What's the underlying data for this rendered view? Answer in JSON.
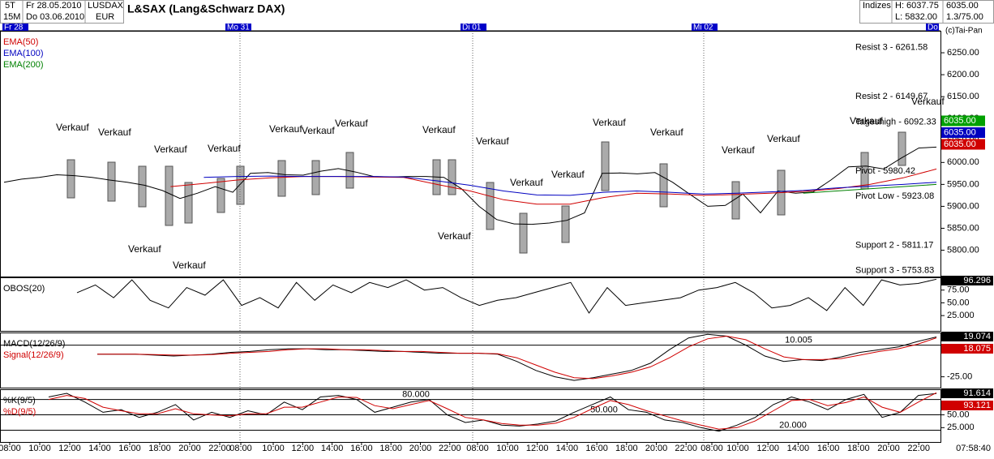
{
  "header": {
    "period": "5T",
    "interval": "15M",
    "date_from": "Fr 28.05.2010",
    "date_to": "Do 03.06.2010",
    "symbol": "LUSDAX",
    "currency": "EUR",
    "title": "L&SAX (Lang&Schwarz DAX)",
    "group": "Indizes",
    "high": "H: 6037.75",
    "low": "L: 5832.00",
    "last": "6035.00",
    "ratio": "1.3/75.00",
    "copyright": "(c)Tai-Pan",
    "time": "07:58:40",
    "days": [
      "Fr 28",
      "Mo 31",
      "Di 01",
      "Mi 02",
      "Do"
    ],
    "time_labels": [
      "08:00",
      "10:00",
      "12:00",
      "14:00",
      "16:00",
      "18:00",
      "20:00",
      "22:00",
      "08:00",
      "10:00",
      "12:00",
      "14:00",
      "16:00",
      "18:00",
      "20:00",
      "22:00",
      "08:00",
      "10:00",
      "12:00",
      "14:00",
      "16:00",
      "18:00",
      "20:00",
      "22:00",
      "08:00",
      "10:00",
      "12:00",
      "14:00",
      "16:00",
      "18:00",
      "20:00",
      "22:00"
    ]
  },
  "chart_data": [
    {
      "type": "line",
      "ylim": [
        5740,
        6300
      ],
      "yticks": [
        {
          "value": 5800,
          "label": "5800.00"
        },
        {
          "value": 5850,
          "label": "5850.00"
        },
        {
          "value": 5900,
          "label": "5900.00"
        },
        {
          "value": 5950,
          "label": "5950.00"
        },
        {
          "value": 6000,
          "label": "6000.00"
        },
        {
          "value": 6050,
          "label": "6050.00"
        },
        {
          "value": 6100,
          "label": "6100.00"
        },
        {
          "value": 6150,
          "label": "6150.00"
        },
        {
          "value": 6200,
          "label": "6200.00"
        },
        {
          "value": 6250,
          "label": "6250.00"
        }
      ],
      "series": [
        {
          "color": "#000000",
          "values": [
            5955,
            5962,
            5966,
            5972,
            5970,
            5966,
            5960,
            5955,
            5948,
            5936,
            5918,
            5930,
            5945,
            5932,
            5975,
            5977,
            5972,
            5971,
            5980,
            5986,
            5978,
            5968,
            5967,
            5968,
            5968,
            5966,
            5940,
            5900,
            5870,
            5860,
            5859,
            5862,
            5868,
            5885,
            5975,
            5976,
            5974,
            5977,
            5955,
            5927,
            5900,
            5902,
            5928,
            5885,
            5935,
            5930,
            5933,
            5960,
            5990,
            5992,
            5985,
            6010,
            6033,
            6035
          ]
        },
        {
          "name": "EMA(50)",
          "color": "#d00000",
          "values": [
            null,
            null,
            null,
            null,
            null,
            5945,
            5952,
            5960,
            5965,
            5968,
            5968,
            5967,
            5966,
            5950,
            5935,
            5915,
            5905,
            5905,
            5920,
            5930,
            5928,
            5925,
            5927,
            5930,
            5934,
            5940,
            5950,
            5965,
            5985
          ]
        },
        {
          "name": "EMA(100)",
          "color": "#0000c0",
          "values": [
            null,
            null,
            null,
            null,
            null,
            null,
            5966,
            5968,
            5969,
            5968,
            5968,
            5968,
            5967,
            5958,
            5948,
            5935,
            5926,
            5925,
            5932,
            5935,
            5932,
            5928,
            5930,
            5933,
            5936,
            5942,
            5946,
            5950,
            5955
          ]
        },
        {
          "name": "EMA(200)",
          "color": "#008000",
          "values": [
            null,
            null,
            null,
            null,
            null,
            null,
            null,
            null,
            null,
            null,
            null,
            null,
            null,
            null,
            null,
            null,
            null,
            null,
            null,
            null,
            null,
            null,
            null,
            null,
            5930,
            5935,
            5940,
            5945,
            5950
          ]
        }
      ],
      "levels": [
        {
          "label": "Resist 3 - 6261.58",
          "value": 6261.58
        },
        {
          "label": "Resist 2 - 6149.67",
          "value": 6149.67
        },
        {
          "label": "Tageshigh - 6092.33",
          "value": 6092.33
        },
        {
          "label": "Pivot - 5980.42",
          "value": 5980.42
        },
        {
          "label": "Pivot Low - 5923.08",
          "value": 5923.08
        },
        {
          "label": "Support 2 - 5811.17",
          "value": 5811.17
        },
        {
          "label": "Support 3 - 5753.83",
          "value": 5753.83
        }
      ],
      "price_tags": [
        {
          "value": 6035,
          "label": "6035.00",
          "color": "#00a000"
        },
        {
          "value": 6035,
          "label": "6035.00",
          "color": "#0000c0"
        },
        {
          "value": 6035,
          "label": "6035.00",
          "color": "#d00000"
        }
      ],
      "annotations": [
        "Verkauf",
        "Verkauf",
        "Verkauf",
        "Verkauf",
        "Verkauf",
        "Verkauf",
        "Verkauf",
        "Verkauf",
        "Verkauf",
        "Verkauf",
        "Verkauf",
        "Verkauf",
        "Verkauf",
        "Verkauf",
        "Verkauf",
        "Verkauf",
        "Verkauf",
        "Verkauf",
        "Verkauf",
        "Verkauf"
      ]
    },
    {
      "type": "line",
      "ylim": [
        -5,
        100
      ],
      "yticks": [
        {
          "value": 75,
          "label": "75.00"
        },
        {
          "value": 50,
          "label": "50.00"
        },
        {
          "value": 25,
          "label": "25.000"
        }
      ],
      "series": [
        {
          "name": "OBOS(20)",
          "color": "#000000",
          "values": [
            70,
            85,
            60,
            95,
            55,
            40,
            80,
            65,
            95,
            45,
            60,
            40,
            90,
            55,
            85,
            70,
            90,
            80,
            95,
            75,
            80,
            60,
            45,
            55,
            60,
            70,
            80,
            90,
            30,
            80,
            45,
            50,
            55,
            60,
            75,
            80,
            90,
            70,
            40,
            45,
            60,
            35,
            80,
            45,
            95,
            85,
            88,
            96.296
          ]
        }
      ]
    },
    {
      "type": "line",
      "ylim": [
        -37,
        24
      ],
      "yticks": [
        {
          "value": -25,
          "label": "-25.00"
        }
      ],
      "levels": [
        {
          "value": 10.005,
          "label": "10.005"
        }
      ],
      "series": [
        {
          "name": "MACD(12/26/9)",
          "color": "#000000",
          "values": [
            0,
            0,
            0,
            -1,
            -2,
            -1,
            0,
            2,
            3,
            5,
            6,
            6,
            5,
            5,
            4,
            3,
            3,
            2,
            1,
            1,
            1,
            0,
            -8,
            -18,
            -25,
            -29,
            -26,
            -22,
            -18,
            -10,
            5,
            18,
            22,
            20,
            10,
            -2,
            -8,
            -6,
            -7,
            -3,
            2,
            5,
            8,
            14,
            19.074
          ]
        },
        {
          "name": "Signal(12/26/9)",
          "color": "#d00000",
          "values": [
            0,
            0,
            0,
            -0.5,
            -1,
            -1,
            -0.5,
            1,
            2,
            3,
            5,
            6,
            6,
            5,
            5,
            4,
            3,
            3,
            2,
            1,
            1,
            0.5,
            -4,
            -12,
            -20,
            -26,
            -27,
            -24,
            -20,
            -14,
            -4,
            8,
            17,
            20,
            16,
            6,
            -3,
            -6,
            -6,
            -5,
            -1,
            3,
            6,
            11,
            18.075
          ]
        }
      ]
    },
    {
      "type": "line",
      "ylim": [
        -3,
        100
      ],
      "yticks": [
        {
          "value": 50,
          "label": "50.00"
        },
        {
          "value": 25,
          "label": "25.000"
        }
      ],
      "levels": [
        {
          "value": 80,
          "label": "80.000"
        },
        {
          "value": 50,
          "label": "50.000"
        },
        {
          "value": 20,
          "label": "20.000"
        }
      ],
      "series": [
        {
          "name": "%K(9/5)",
          "color": "#000000",
          "values": [
            85,
            92,
            75,
            55,
            60,
            45,
            55,
            70,
            40,
            55,
            45,
            58,
            50,
            75,
            60,
            85,
            88,
            80,
            55,
            65,
            75,
            80,
            50,
            35,
            40,
            30,
            28,
            32,
            38,
            55,
            70,
            85,
            60,
            55,
            40,
            35,
            25,
            18,
            30,
            45,
            70,
            85,
            75,
            60,
            80,
            90,
            45,
            55,
            88,
            91.614
          ]
        },
        {
          "name": "%D(9/5)",
          "color": "#d00000",
          "values": [
            80,
            88,
            82,
            65,
            58,
            52,
            52,
            62,
            52,
            50,
            48,
            52,
            52,
            65,
            65,
            75,
            85,
            84,
            68,
            62,
            70,
            78,
            62,
            45,
            40,
            33,
            30,
            30,
            34,
            45,
            62,
            78,
            70,
            58,
            48,
            38,
            30,
            22,
            25,
            38,
            58,
            78,
            80,
            68,
            74,
            85,
            65,
            55,
            75,
            93.121
          ]
        }
      ]
    }
  ]
}
